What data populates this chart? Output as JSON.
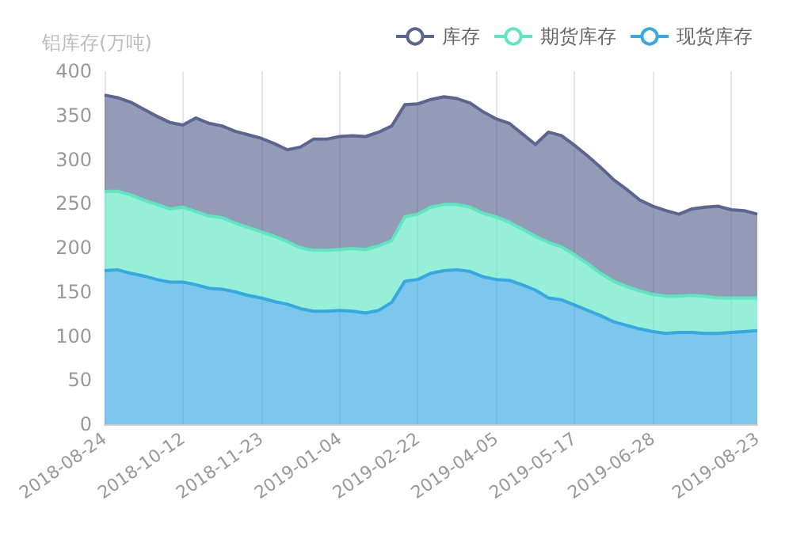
{
  "chart_data": {
    "type": "area",
    "stacked": true,
    "ylabel": "铝库存(万吨)",
    "categories": [
      "2018-08-24",
      null,
      null,
      null,
      null,
      null,
      "2018-10-12",
      null,
      null,
      null,
      null,
      null,
      "2018-11-23",
      null,
      null,
      null,
      null,
      null,
      "2019-01-04",
      null,
      null,
      null,
      null,
      null,
      "2019-02-22",
      null,
      null,
      null,
      null,
      null,
      "2019-04-05",
      null,
      null,
      null,
      null,
      null,
      "2019-05-17",
      null,
      null,
      null,
      null,
      null,
      "2019-06-28",
      null,
      null,
      null,
      null,
      null,
      null,
      null,
      "2019-08-23"
    ],
    "series": [
      {
        "name": "现货库存",
        "color": "#36a9e1",
        "values": [
          174,
          175,
          171,
          168,
          164,
          161,
          161,
          158,
          154,
          153,
          150,
          146,
          143,
          139,
          136,
          131,
          128,
          128,
          129,
          128,
          126,
          129,
          138,
          162,
          164,
          171,
          174,
          175,
          173,
          167,
          164,
          163,
          158,
          152,
          143,
          141,
          135,
          129,
          123,
          116,
          112,
          108,
          105,
          103,
          104,
          104,
          103,
          103,
          104,
          105,
          106
        ]
      },
      {
        "name": "期货库存",
        "color": "#5ee6c0",
        "values": [
          90,
          89,
          89,
          86,
          85,
          83,
          85,
          83,
          82,
          81,
          78,
          77,
          75,
          74,
          71,
          69,
          69,
          69,
          69,
          71,
          72,
          73,
          70,
          73,
          74,
          75,
          75,
          74,
          73,
          72,
          71,
          66,
          63,
          61,
          63,
          60,
          57,
          53,
          48,
          46,
          44,
          43,
          42,
          42,
          41,
          42,
          42,
          40,
          39,
          38,
          37
        ]
      },
      {
        "name": "库存",
        "color": "#5b6591",
        "values": [
          109,
          106,
          105,
          103,
          100,
          98,
          93,
          106,
          105,
          104,
          104,
          105,
          106,
          105,
          104,
          114,
          126,
          126,
          128,
          128,
          128,
          129,
          130,
          127,
          125,
          122,
          122,
          120,
          118,
          115,
          111,
          112,
          108,
          104,
          125,
          126,
          124,
          122,
          120,
          115,
          110,
          103,
          100,
          97,
          93,
          98,
          101,
          104,
          100,
          99,
          95
        ]
      }
    ],
    "ylim": [
      0,
      400
    ],
    "yticks": [
      0,
      50,
      100,
      150,
      200,
      250,
      300,
      350,
      400
    ],
    "grid": "x",
    "legend": "top right"
  }
}
